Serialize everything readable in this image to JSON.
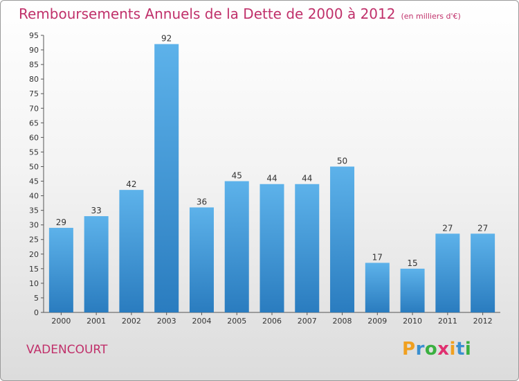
{
  "chart_data": {
    "type": "bar",
    "title": "Remboursements Annuels de la Dette de 2000 à 2012",
    "unit_note": "(en milliers d'€)",
    "categories": [
      "2000",
      "2001",
      "2002",
      "2003",
      "2004",
      "2005",
      "2006",
      "2007",
      "2008",
      "2009",
      "2010",
      "2011",
      "2012"
    ],
    "values": [
      29,
      33,
      42,
      92,
      36,
      45,
      44,
      44,
      50,
      17,
      15,
      27,
      27
    ],
    "xlabel": "",
    "ylabel": "",
    "ylim": [
      0,
      95
    ],
    "yticks": [
      0,
      5,
      10,
      15,
      20,
      25,
      30,
      35,
      40,
      45,
      50,
      55,
      60,
      65,
      70,
      75,
      80,
      85,
      90,
      95
    ],
    "grid": false,
    "bar_color": "#4a9fd8"
  },
  "footer": {
    "city": "VADENCOURT",
    "logo_letters": [
      "P",
      "r",
      "o",
      "x",
      "i",
      "t",
      "i"
    ],
    "logo_colors": [
      "#f0a020",
      "#3a8fd0",
      "#3ab040",
      "#e03070",
      "#f0a020",
      "#3a8fd0",
      "#3ab040"
    ]
  },
  "colors": {
    "accent": "#c0306a"
  }
}
